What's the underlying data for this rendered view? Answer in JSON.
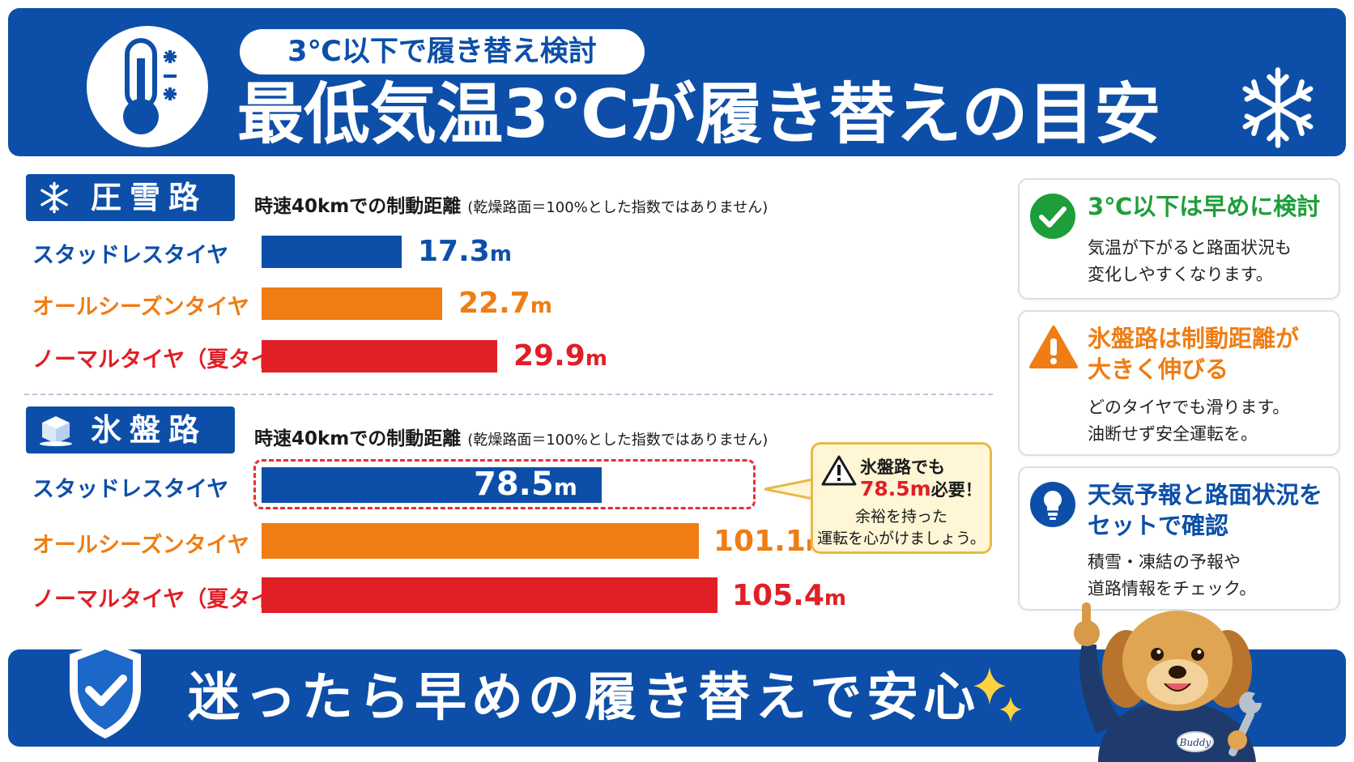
{
  "header": {
    "pill": "3℃以下で履き替え検討",
    "title": "最低気温3℃が履き替えの目安"
  },
  "sections": {
    "snow": {
      "label": "圧雪路"
    },
    "ice": {
      "label": "氷盤路"
    },
    "caption_main": "時速40kmでの制動距離",
    "caption_note": "(乾燥路面＝100%とした指数ではありません)"
  },
  "chart_data": [
    {
      "type": "bar",
      "title": "圧雪路",
      "categories": [
        "スタッドレスタイヤ",
        "オールシーズンタイヤ",
        "ノーマルタイヤ（夏タイヤ）"
      ],
      "values": [
        17.3,
        22.7,
        29.9
      ],
      "unit": "m",
      "colors": [
        "#0d4fa8",
        "#ef7d14",
        "#e01f26"
      ]
    },
    {
      "type": "bar",
      "title": "氷盤路",
      "categories": [
        "スタッドレスタイヤ",
        "オールシーズンタイヤ",
        "ノーマルタイヤ（夏タイヤ）"
      ],
      "values": [
        78.5,
        101.1,
        105.4
      ],
      "unit": "m",
      "colors": [
        "#0d4fa8",
        "#ef7d14",
        "#e01f26"
      ]
    }
  ],
  "labels": {
    "snow": [
      "スタッドレスタイヤ",
      "オールシーズンタイヤ",
      "ノーマルタイヤ（夏タイヤ）"
    ],
    "ice": [
      "スタッドレスタイヤ",
      "オールシーズンタイヤ",
      "ノーマルタイヤ（夏タイヤ）"
    ]
  },
  "values_text": {
    "snow": [
      "17.3",
      "22.7",
      "29.9"
    ],
    "ice": [
      "78.5",
      "101.1",
      "105.4"
    ],
    "unit": "m"
  },
  "callout": {
    "line1": "氷盤路でも",
    "highlight": "78.5m",
    "line2_rest": "必要！",
    "line3": "余裕を持った",
    "line4": "運転を心がけましょう。"
  },
  "cards": [
    {
      "title": "3℃以下は早めに検討",
      "body1": "気温が下がると路面状況も",
      "body2": "変化しやすくなります。",
      "color": "#1e9e3a",
      "icon": "check-circle-icon"
    },
    {
      "title1": "氷盤路は制動距離が",
      "title2": "大きく伸びる",
      "body1": "どのタイヤでも滑ります。",
      "body2": "油断せず安全運転を。",
      "color": "#ef7d14",
      "icon": "warning-icon"
    },
    {
      "title1": "天気予報と路面状況を",
      "title2": "セットで確認",
      "body1": "積雪・凍結の予報や",
      "body2": "道路情報をチェック。",
      "color": "#0d4fa8",
      "icon": "lightbulb-icon"
    }
  ],
  "footer": {
    "text": "迷ったら早めの履き替えで安心"
  },
  "mascot": {
    "badge": "Buddy"
  }
}
